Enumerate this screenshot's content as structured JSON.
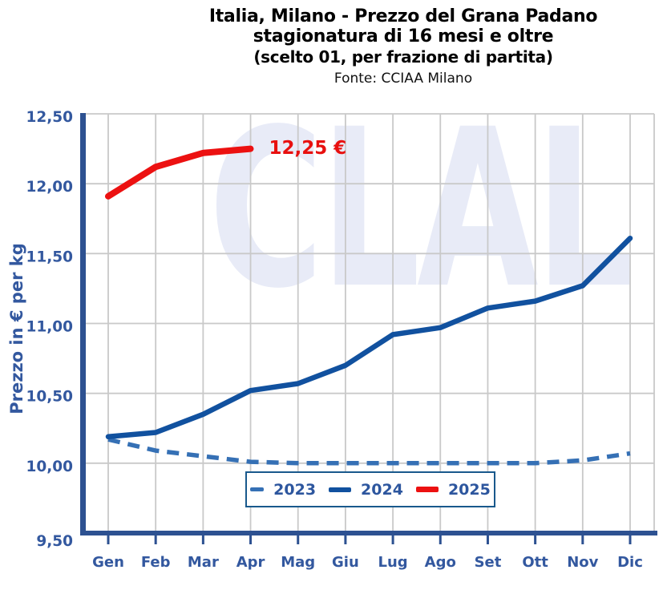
{
  "header": {
    "title_line1": "Italia, Milano - Prezzo del Grana Padano",
    "title_line2": "stagionatura di 16 mesi e oltre",
    "title_line3": "(scelto 01, per frazione di partita)",
    "source": "Fonte: CCIAA Milano"
  },
  "watermark": {
    "text": "CLAL"
  },
  "colors": {
    "axis": "#2d5191",
    "grid": "#c9c9c9",
    "tick_label": "#33589f",
    "legend_border": "#19598c",
    "watermark": "#e8ebf7",
    "annotation": "#e8100f",
    "title": "#000000"
  },
  "chart_data": {
    "type": "line",
    "title": "Italia, Milano - Prezzo del Grana Padano stagionatura di 16 mesi e oltre (scelto 01, per frazione di partita)",
    "source": "Fonte: CCIAA Milano",
    "xlabel": "",
    "ylabel": "Prezzo in € per kg",
    "ylim": [
      9.5,
      12.5
    ],
    "y_tick_step": 0.5,
    "y_tick_values": [
      12.5,
      12.0,
      11.5,
      11.0,
      10.5,
      10.0,
      9.5
    ],
    "y_tick_labels": [
      "12,50",
      "12,00",
      "11,50",
      "11,00",
      "10,50",
      "10,00",
      "9,50"
    ],
    "categories": [
      "Gen",
      "Feb",
      "Mar",
      "Apr",
      "Mag",
      "Giu",
      "Lug",
      "Ago",
      "Set",
      "Ott",
      "Nov",
      "Dic"
    ],
    "grid": true,
    "legend_position": "inside-bottom-center",
    "series": [
      {
        "name": "2023",
        "style": "dashed",
        "color": "#3570b5",
        "width": 5.5,
        "values": [
          10.17,
          10.09,
          10.05,
          10.01,
          10.0,
          10.0,
          10.0,
          10.0,
          10.0,
          10.0,
          10.02,
          10.07
        ]
      },
      {
        "name": "2024",
        "style": "solid",
        "color": "#11519f",
        "width": 6.5,
        "values": [
          10.19,
          10.22,
          10.35,
          10.52,
          10.57,
          10.7,
          10.92,
          10.97,
          11.11,
          11.16,
          11.27,
          11.61
        ]
      },
      {
        "name": "2025",
        "style": "solid",
        "color": "#ec1111",
        "width": 8,
        "values": [
          11.91,
          12.12,
          12.22,
          12.25
        ],
        "last_point_label": "12,25 €"
      }
    ],
    "annotation": {
      "text": "12,25 €",
      "series": "2025",
      "at_category": "Apr",
      "value": 12.25
    }
  }
}
